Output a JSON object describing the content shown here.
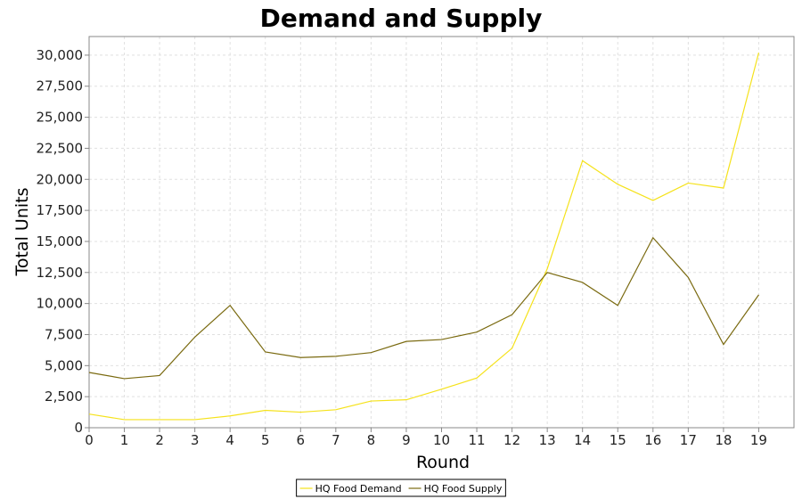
{
  "chart_data": {
    "type": "line",
    "title": "Demand and Supply",
    "xlabel": "Round",
    "ylabel": "Total Units",
    "x": [
      0,
      1,
      2,
      3,
      4,
      5,
      6,
      7,
      8,
      9,
      10,
      11,
      12,
      13,
      14,
      15,
      16,
      17,
      18,
      19
    ],
    "xlim": [
      0,
      20
    ],
    "ylim": [
      0,
      31500
    ],
    "yticks": [
      0,
      2500,
      5000,
      7500,
      10000,
      12500,
      15000,
      17500,
      20000,
      22500,
      25000,
      27500,
      30000
    ],
    "ytick_labels": [
      "0",
      "2,500",
      "5,000",
      "7,500",
      "10,000",
      "12,500",
      "15,000",
      "17,500",
      "20,000",
      "22,500",
      "25,000",
      "27,500",
      "30,000"
    ],
    "xtick_labels": [
      "0",
      "1",
      "2",
      "3",
      "4",
      "5",
      "6",
      "7",
      "8",
      "9",
      "10",
      "11",
      "12",
      "13",
      "14",
      "15",
      "16",
      "17",
      "18",
      "19"
    ],
    "grid": true,
    "legend_position": "bottom-center",
    "series": [
      {
        "name": "HQ Food Demand",
        "color": "#f5e21b",
        "values": [
          1100,
          650,
          650,
          650,
          950,
          1400,
          1250,
          1450,
          2150,
          2250,
          3100,
          4000,
          6400,
          12800,
          21500,
          19600,
          18300,
          19700,
          19300,
          30200
        ]
      },
      {
        "name": "HQ Food Supply",
        "color": "#7a6a10",
        "values": [
          4450,
          3950,
          4200,
          7300,
          9850,
          6100,
          5650,
          5750,
          6050,
          6950,
          7100,
          7700,
          9100,
          12500,
          11700,
          9850,
          15300,
          12100,
          6700,
          10700
        ]
      }
    ]
  }
}
